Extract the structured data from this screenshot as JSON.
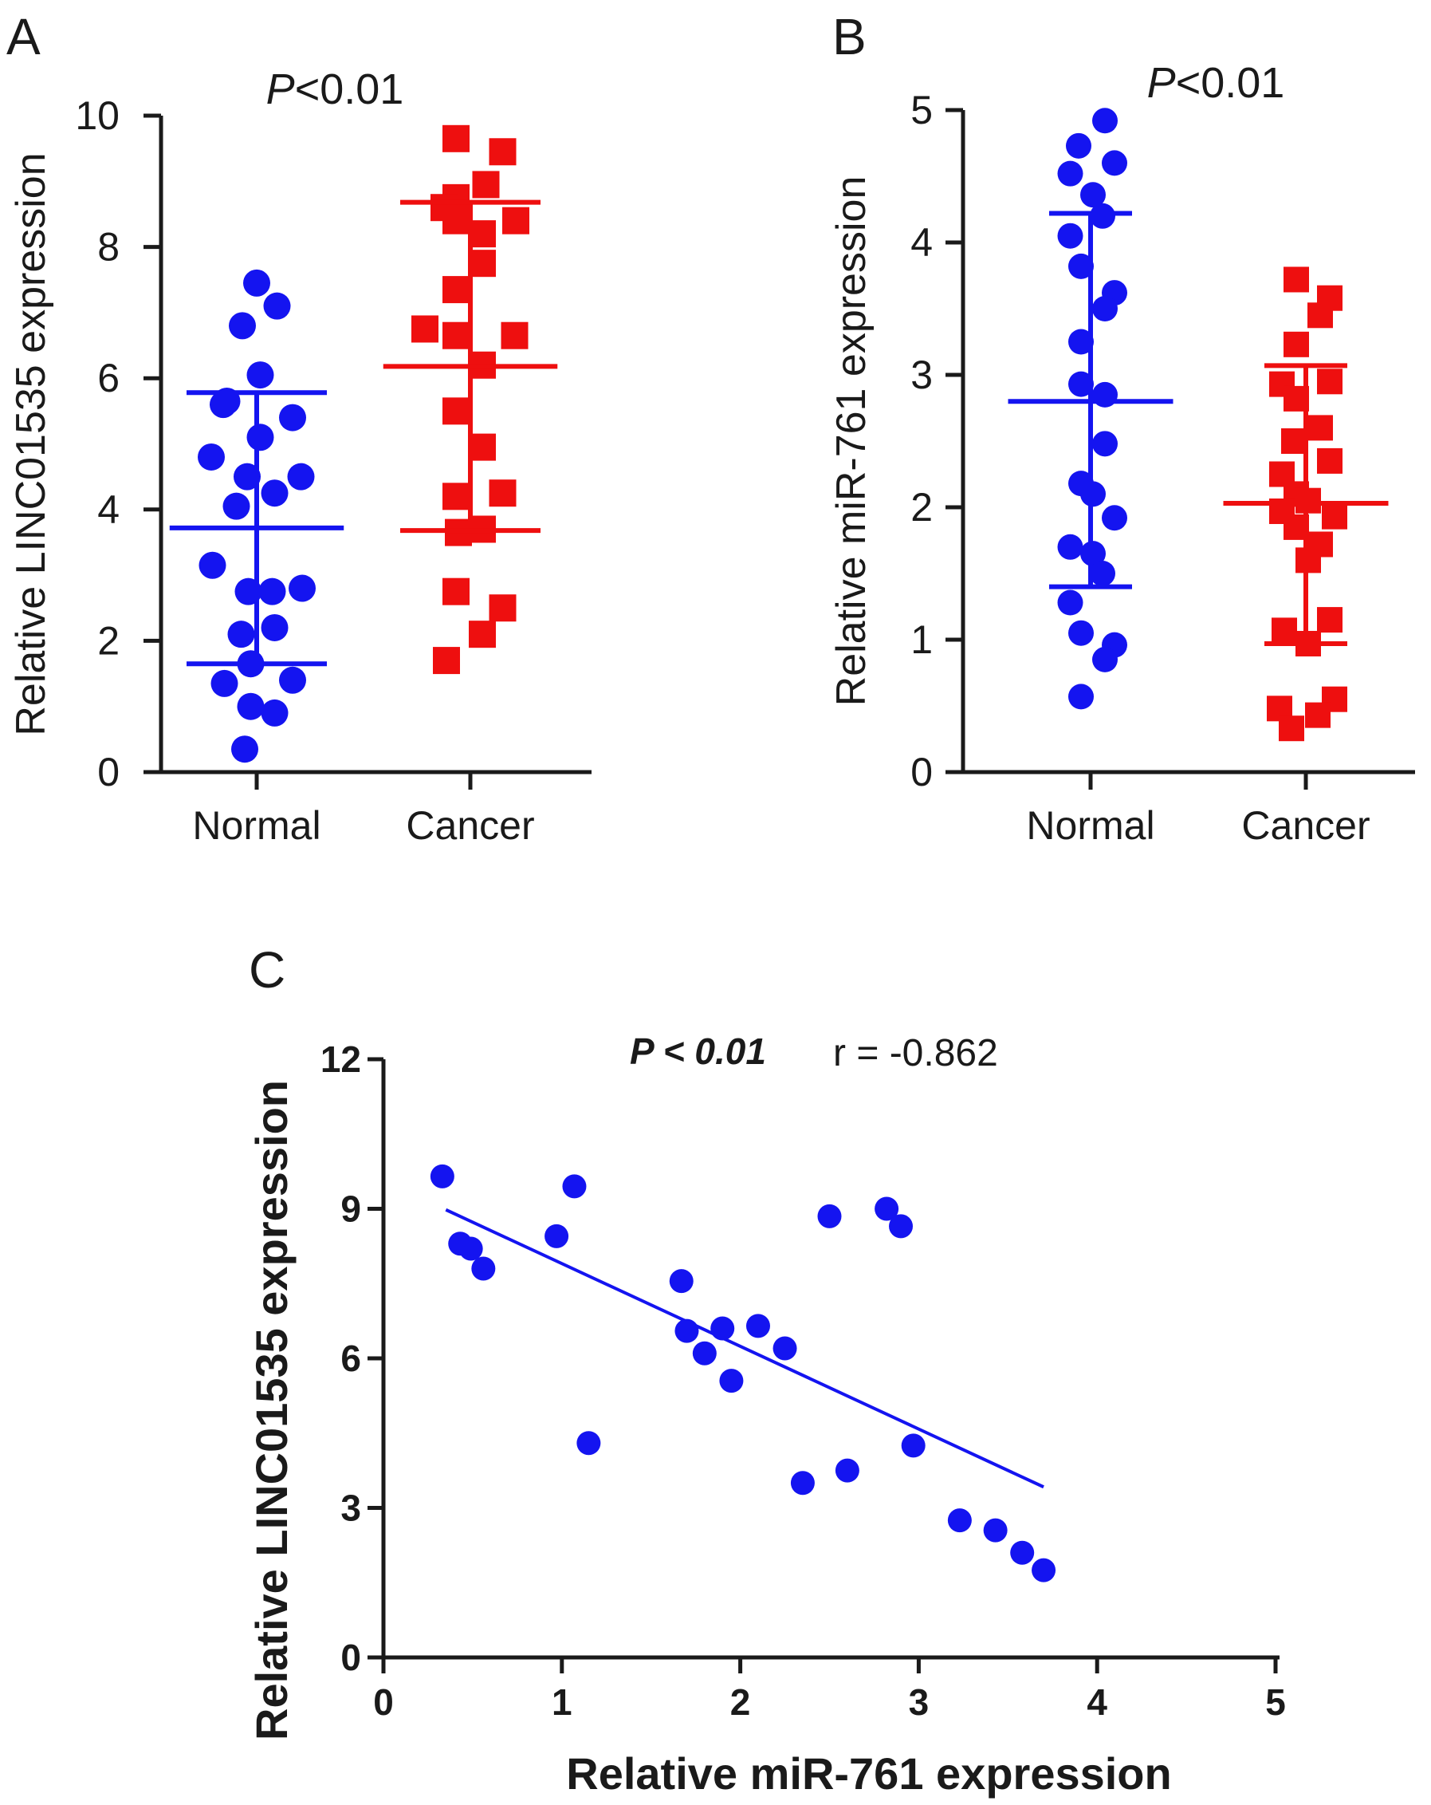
{
  "colors": {
    "normal": "#1414f0",
    "cancer": "#ee0f0f",
    "axis": "#1a1a1a"
  },
  "chart_data": [
    {
      "panel": "A",
      "type": "scatter",
      "title": "P<0.01",
      "title_prefix": "P",
      "title_suffix": "<0.01",
      "ylabel": "Relative LINC01535 expression",
      "ylim": [
        0,
        10
      ],
      "yticks": [
        0,
        2,
        4,
        6,
        8,
        10
      ],
      "categories": [
        "Normal",
        "Cancer"
      ],
      "series": [
        {
          "name": "Normal",
          "marker": "circle",
          "color": "#1414f0",
          "mean": 3.72,
          "sd_low": 1.65,
          "sd_high": 5.78,
          "points": [
            {
              "dx": 0.0,
              "y": 7.45
            },
            {
              "dx": 0.17,
              "y": 7.1
            },
            {
              "dx": -0.12,
              "y": 6.8
            },
            {
              "dx": 0.03,
              "y": 6.05
            },
            {
              "dx": -0.25,
              "y": 5.65
            },
            {
              "dx": -0.28,
              "y": 5.6
            },
            {
              "dx": 0.3,
              "y": 5.4
            },
            {
              "dx": 0.03,
              "y": 5.1
            },
            {
              "dx": -0.38,
              "y": 4.8
            },
            {
              "dx": 0.37,
              "y": 4.5
            },
            {
              "dx": -0.08,
              "y": 4.5
            },
            {
              "dx": -0.17,
              "y": 4.05
            },
            {
              "dx": 0.15,
              "y": 4.25
            },
            {
              "dx": -0.37,
              "y": 3.15
            },
            {
              "dx": -0.07,
              "y": 2.75
            },
            {
              "dx": 0.13,
              "y": 2.75
            },
            {
              "dx": 0.38,
              "y": 2.8
            },
            {
              "dx": -0.13,
              "y": 2.1
            },
            {
              "dx": 0.15,
              "y": 2.2
            },
            {
              "dx": -0.05,
              "y": 1.65
            },
            {
              "dx": -0.27,
              "y": 1.35
            },
            {
              "dx": 0.3,
              "y": 1.4
            },
            {
              "dx": -0.05,
              "y": 1.0
            },
            {
              "dx": 0.15,
              "y": 0.9
            },
            {
              "dx": -0.1,
              "y": 0.35
            }
          ]
        },
        {
          "name": "Cancer",
          "marker": "square",
          "color": "#ee0f0f",
          "mean": 6.18,
          "sd_low": 3.68,
          "sd_high": 8.68,
          "points": [
            {
              "dx": -0.12,
              "y": 9.65
            },
            {
              "dx": 0.27,
              "y": 9.45
            },
            {
              "dx": 0.13,
              "y": 8.95
            },
            {
              "dx": -0.12,
              "y": 8.75
            },
            {
              "dx": -0.22,
              "y": 8.6
            },
            {
              "dx": 0.38,
              "y": 8.4
            },
            {
              "dx": -0.12,
              "y": 8.4
            },
            {
              "dx": 0.1,
              "y": 8.2
            },
            {
              "dx": 0.1,
              "y": 7.75
            },
            {
              "dx": -0.12,
              "y": 7.35
            },
            {
              "dx": -0.38,
              "y": 6.75
            },
            {
              "dx": 0.37,
              "y": 6.65
            },
            {
              "dx": -0.12,
              "y": 6.65
            },
            {
              "dx": 0.1,
              "y": 6.2
            },
            {
              "dx": -0.12,
              "y": 5.5
            },
            {
              "dx": 0.1,
              "y": 4.95
            },
            {
              "dx": -0.12,
              "y": 4.2
            },
            {
              "dx": 0.27,
              "y": 4.25
            },
            {
              "dx": -0.1,
              "y": 3.65
            },
            {
              "dx": 0.1,
              "y": 3.7
            },
            {
              "dx": -0.12,
              "y": 2.75
            },
            {
              "dx": 0.27,
              "y": 2.5
            },
            {
              "dx": 0.1,
              "y": 2.1
            },
            {
              "dx": -0.2,
              "y": 1.7
            }
          ]
        }
      ]
    },
    {
      "panel": "B",
      "type": "scatter",
      "title": "P<0.01",
      "title_prefix": "P",
      "title_suffix": "<0.01",
      "ylabel": "Relative miR-761 expression",
      "ylim": [
        0,
        5
      ],
      "yticks": [
        0,
        1,
        2,
        3,
        4,
        5
      ],
      "categories": [
        "Normal",
        "Cancer"
      ],
      "series": [
        {
          "name": "Normal",
          "marker": "circle",
          "color": "#1414f0",
          "mean": 2.8,
          "sd_low": 1.4,
          "sd_high": 4.22,
          "points": [
            {
              "dx": 0.12,
              "y": 4.92
            },
            {
              "dx": -0.1,
              "y": 4.73
            },
            {
              "dx": 0.2,
              "y": 4.6
            },
            {
              "dx": -0.17,
              "y": 4.52
            },
            {
              "dx": 0.02,
              "y": 4.36
            },
            {
              "dx": 0.1,
              "y": 4.2
            },
            {
              "dx": -0.17,
              "y": 4.05
            },
            {
              "dx": -0.08,
              "y": 3.82
            },
            {
              "dx": 0.2,
              "y": 3.62
            },
            {
              "dx": 0.12,
              "y": 3.5
            },
            {
              "dx": -0.08,
              "y": 3.25
            },
            {
              "dx": -0.08,
              "y": 2.93
            },
            {
              "dx": 0.12,
              "y": 2.85
            },
            {
              "dx": 0.12,
              "y": 2.48
            },
            {
              "dx": -0.08,
              "y": 2.18
            },
            {
              "dx": 0.02,
              "y": 2.1
            },
            {
              "dx": 0.2,
              "y": 1.92
            },
            {
              "dx": -0.17,
              "y": 1.7
            },
            {
              "dx": 0.02,
              "y": 1.65
            },
            {
              "dx": 0.1,
              "y": 1.5
            },
            {
              "dx": -0.17,
              "y": 1.28
            },
            {
              "dx": -0.08,
              "y": 1.05
            },
            {
              "dx": 0.2,
              "y": 0.96
            },
            {
              "dx": 0.12,
              "y": 0.85
            },
            {
              "dx": -0.08,
              "y": 0.57
            }
          ]
        },
        {
          "name": "Cancer",
          "marker": "square",
          "color": "#ee0f0f",
          "mean": 2.03,
          "sd_low": 0.97,
          "sd_high": 3.07,
          "points": [
            {
              "dx": -0.08,
              "y": 3.72
            },
            {
              "dx": 0.2,
              "y": 3.58
            },
            {
              "dx": 0.12,
              "y": 3.45
            },
            {
              "dx": -0.08,
              "y": 3.23
            },
            {
              "dx": -0.2,
              "y": 2.93
            },
            {
              "dx": 0.2,
              "y": 2.95
            },
            {
              "dx": -0.08,
              "y": 2.82
            },
            {
              "dx": 0.12,
              "y": 2.6
            },
            {
              "dx": -0.1,
              "y": 2.5
            },
            {
              "dx": 0.2,
              "y": 2.35
            },
            {
              "dx": -0.2,
              "y": 2.25
            },
            {
              "dx": -0.08,
              "y": 2.1
            },
            {
              "dx": 0.02,
              "y": 2.05
            },
            {
              "dx": -0.2,
              "y": 1.97
            },
            {
              "dx": 0.24,
              "y": 1.93
            },
            {
              "dx": -0.08,
              "y": 1.85
            },
            {
              "dx": 0.12,
              "y": 1.72
            },
            {
              "dx": 0.02,
              "y": 1.6
            },
            {
              "dx": -0.18,
              "y": 1.07
            },
            {
              "dx": 0.2,
              "y": 1.15
            },
            {
              "dx": 0.02,
              "y": 0.97
            },
            {
              "dx": -0.22,
              "y": 0.48
            },
            {
              "dx": 0.24,
              "y": 0.55
            },
            {
              "dx": -0.12,
              "y": 0.33
            },
            {
              "dx": 0.1,
              "y": 0.43
            }
          ]
        }
      ]
    },
    {
      "panel": "C",
      "type": "scatter",
      "annotation_p_prefix": "P",
      "annotation_p_suffix": " < 0.01",
      "annotation_r": "r = -0.862",
      "xlabel": "Relative miR-761 expression",
      "ylabel": "Relative LINC01535 expression",
      "xlim": [
        0,
        5
      ],
      "ylim": [
        0,
        12
      ],
      "xticks": [
        0,
        1,
        2,
        3,
        4,
        5
      ],
      "yticks": [
        0,
        3,
        6,
        9,
        12
      ],
      "color": "#1414f0",
      "points": [
        {
          "x": 0.33,
          "y": 9.65
        },
        {
          "x": 0.43,
          "y": 8.3
        },
        {
          "x": 0.49,
          "y": 8.2
        },
        {
          "x": 0.56,
          "y": 7.8
        },
        {
          "x": 0.97,
          "y": 8.45
        },
        {
          "x": 1.07,
          "y": 9.45
        },
        {
          "x": 1.15,
          "y": 4.3
        },
        {
          "x": 1.67,
          "y": 7.55
        },
        {
          "x": 1.7,
          "y": 6.55
        },
        {
          "x": 1.8,
          "y": 6.1
        },
        {
          "x": 1.9,
          "y": 6.6
        },
        {
          "x": 1.95,
          "y": 5.55
        },
        {
          "x": 2.1,
          "y": 6.65
        },
        {
          "x": 2.25,
          "y": 6.2
        },
        {
          "x": 2.35,
          "y": 3.5
        },
        {
          "x": 2.5,
          "y": 8.85
        },
        {
          "x": 2.6,
          "y": 3.75
        },
        {
          "x": 2.82,
          "y": 9.0
        },
        {
          "x": 2.9,
          "y": 8.65
        },
        {
          "x": 2.97,
          "y": 4.25
        },
        {
          "x": 3.23,
          "y": 2.75
        },
        {
          "x": 3.43,
          "y": 2.55
        },
        {
          "x": 3.58,
          "y": 2.1
        },
        {
          "x": 3.7,
          "y": 1.75
        }
      ],
      "fit_line": {
        "x": [
          0.35,
          3.7
        ],
        "y": [
          8.98,
          3.42
        ]
      }
    }
  ]
}
